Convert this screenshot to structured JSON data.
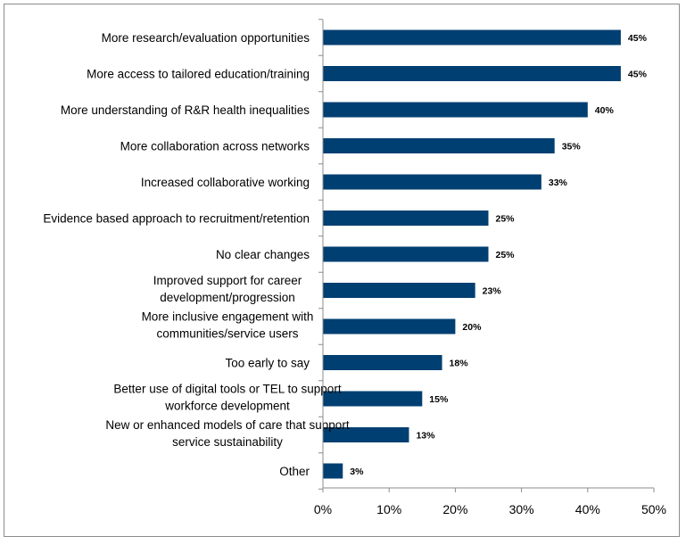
{
  "chart_data": {
    "type": "bar",
    "orientation": "horizontal",
    "categories": [
      [
        "More research/evaluation opportunities"
      ],
      [
        "More access to tailored education/training"
      ],
      [
        "More understanding of R&R health inequalities"
      ],
      [
        "More collaboration across networks"
      ],
      [
        "Increased collaborative working"
      ],
      [
        "Evidence based approach to recruitment/retention"
      ],
      [
        "No clear changes"
      ],
      [
        "Improved support for career",
        "development/progression"
      ],
      [
        "More inclusive engagement with",
        "communities/service users"
      ],
      [
        "Too early to say"
      ],
      [
        "Better use of digital tools or TEL to support",
        "workforce development"
      ],
      [
        "New or enhanced models of care that support",
        "service sustainability"
      ],
      [
        "Other"
      ]
    ],
    "values": [
      45,
      45,
      40,
      35,
      33,
      25,
      25,
      23,
      20,
      18,
      15,
      13,
      3
    ],
    "value_labels": [
      "45%",
      "45%",
      "40%",
      "35%",
      "33%",
      "25%",
      "25%",
      "23%",
      "20%",
      "18%",
      "15%",
      "13%",
      "3%"
    ],
    "xlim": [
      0,
      50
    ],
    "x_ticks": [
      0,
      10,
      20,
      30,
      40,
      50
    ],
    "x_tick_labels": [
      "0%",
      "10%",
      "20%",
      "30%",
      "40%",
      "50%"
    ],
    "title": "",
    "xlabel": "",
    "ylabel": "",
    "grid": false,
    "bar_color": "#003f72",
    "axis_color": "#8c8c8c"
  }
}
